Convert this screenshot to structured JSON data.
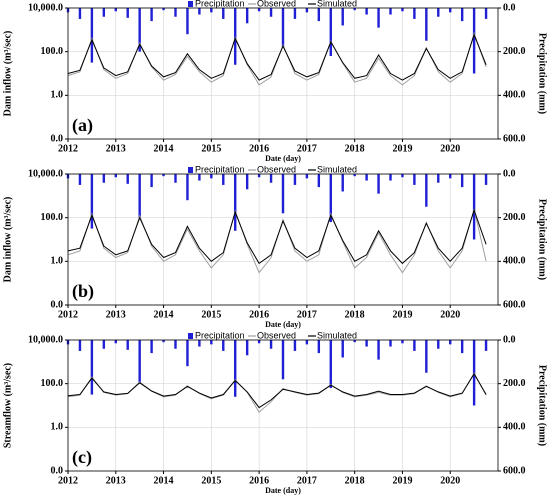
{
  "chart_data": [
    {
      "type": "line",
      "panel_label": "(a)",
      "xlabel": "Date (day)",
      "ylabel": "Dam inflow (m³/sec)",
      "y2label": "Precipitation (mm)",
      "legend": "top",
      "grid": true,
      "log_y": true,
      "x": [
        2012.0,
        2012.25,
        2012.5,
        2012.75,
        2013.0,
        2013.25,
        2013.5,
        2013.75,
        2014.0,
        2014.25,
        2014.5,
        2014.75,
        2015.0,
        2015.25,
        2015.5,
        2015.75,
        2016.0,
        2016.25,
        2016.5,
        2016.75,
        2017.0,
        2017.25,
        2017.5,
        2017.75,
        2018.0,
        2018.25,
        2018.5,
        2018.75,
        2019.0,
        2019.25,
        2019.5,
        2019.75,
        2020.0,
        2020.25,
        2020.5,
        2020.75
      ],
      "xlim": [
        2012,
        2021
      ],
      "xticks": [
        2012,
        2013,
        2014,
        2015,
        2016,
        2017,
        2018,
        2019,
        2020
      ],
      "ylim": [
        0.01,
        10000
      ],
      "yticks": [
        {
          "value": 0.01,
          "label": "0.0"
        },
        {
          "value": 1,
          "label": "1.0"
        },
        {
          "value": 100,
          "label": "100.0"
        },
        {
          "value": 10000,
          "label": "10,000.0"
        }
      ],
      "y2lim": [
        600,
        0
      ],
      "y2ticks": [
        {
          "value": 0,
          "label": "0.0"
        },
        {
          "value": 200,
          "label": "200.0"
        },
        {
          "value": 400,
          "label": "400.0"
        },
        {
          "value": 600,
          "label": "600.0"
        }
      ],
      "series": [
        {
          "name": "Precipitation",
          "type": "bar",
          "axis": "y2",
          "color": "#1f1fd6",
          "values": [
            20,
            50,
            250,
            40,
            15,
            45,
            200,
            60,
            10,
            40,
            120,
            30,
            20,
            50,
            260,
            70,
            15,
            40,
            180,
            50,
            20,
            60,
            220,
            80,
            10,
            30,
            90,
            30,
            15,
            50,
            150,
            40,
            20,
            60,
            300,
            50
          ]
        },
        {
          "name": "Observed",
          "color": "#a0a0a0",
          "values": [
            8,
            12,
            400,
            15,
            6,
            10,
            250,
            20,
            5,
            9,
            60,
            12,
            4,
            8,
            450,
            25,
            3,
            7,
            200,
            10,
            5,
            9,
            300,
            30,
            4,
            6,
            50,
            8,
            3,
            8,
            150,
            12,
            4,
            10,
            700,
            20
          ]
        },
        {
          "name": "Simulated",
          "color": "#000000",
          "values": [
            10,
            14,
            350,
            18,
            8,
            12,
            220,
            22,
            7,
            11,
            80,
            15,
            6,
            10,
            400,
            28,
            5,
            9,
            180,
            13,
            7,
            11,
            280,
            32,
            6,
            8,
            70,
            10,
            5,
            10,
            140,
            15,
            6,
            12,
            600,
            25
          ]
        }
      ]
    },
    {
      "type": "line",
      "panel_label": "(b)",
      "xlabel": "Date (day)",
      "ylabel": "Dam inflow (m³/sec)",
      "y2label": "Precipitation (mm)",
      "legend": "top",
      "grid": true,
      "log_y": true,
      "x": [
        2012.0,
        2012.25,
        2012.5,
        2012.75,
        2013.0,
        2013.25,
        2013.5,
        2013.75,
        2014.0,
        2014.25,
        2014.5,
        2014.75,
        2015.0,
        2015.25,
        2015.5,
        2015.75,
        2016.0,
        2016.25,
        2016.5,
        2016.75,
        2017.0,
        2017.25,
        2017.5,
        2017.75,
        2018.0,
        2018.25,
        2018.5,
        2018.75,
        2019.0,
        2019.25,
        2019.5,
        2019.75,
        2020.0,
        2020.25,
        2020.5,
        2020.75
      ],
      "xlim": [
        2012,
        2021
      ],
      "xticks": [
        2012,
        2013,
        2014,
        2015,
        2016,
        2017,
        2018,
        2019,
        2020
      ],
      "ylim": [
        0.01,
        10000
      ],
      "yticks": [
        {
          "value": 0.01,
          "label": "0.0"
        },
        {
          "value": 1,
          "label": "1.0"
        },
        {
          "value": 100,
          "label": "100.0"
        },
        {
          "value": 10000,
          "label": "10,000.0"
        }
      ],
      "y2lim": [
        600,
        0
      ],
      "y2ticks": [
        {
          "value": 0,
          "label": "0.0"
        },
        {
          "value": 200,
          "label": "200.0"
        },
        {
          "value": 400,
          "label": "400.0"
        },
        {
          "value": 600,
          "label": "600.0"
        }
      ],
      "series": [
        {
          "name": "Precipitation",
          "type": "bar",
          "axis": "y2",
          "color": "#1f1fd6",
          "values": [
            20,
            50,
            250,
            40,
            15,
            45,
            200,
            60,
            10,
            40,
            120,
            30,
            20,
            50,
            260,
            70,
            15,
            40,
            180,
            50,
            20,
            60,
            220,
            80,
            10,
            30,
            90,
            30,
            15,
            50,
            150,
            40,
            20,
            60,
            300,
            50
          ]
        },
        {
          "name": "Observed",
          "color": "#a0a0a0",
          "values": [
            2,
            3,
            150,
            4,
            1.5,
            2.5,
            120,
            5,
            1,
            2,
            30,
            3,
            0.5,
            2,
            200,
            6,
            0.3,
            1.5,
            80,
            3,
            1,
            2,
            150,
            8,
            0.5,
            1.5,
            20,
            2,
            0.3,
            2,
            60,
            3,
            0.5,
            3,
            250,
            1
          ]
        },
        {
          "name": "Simulated",
          "color": "#000000",
          "values": [
            3,
            4,
            130,
            5,
            2,
            3,
            100,
            6,
            1.5,
            2.5,
            40,
            4,
            1,
            2.5,
            180,
            7,
            0.8,
            2,
            70,
            4,
            1.5,
            3,
            130,
            9,
            1,
            2,
            25,
            3,
            0.8,
            2.5,
            55,
            4,
            1,
            4,
            220,
            6
          ]
        }
      ]
    },
    {
      "type": "line",
      "panel_label": "(c)",
      "xlabel": "Date (day)",
      "ylabel": "Streamflow (m³/sec)",
      "y2label": "Precipitation (mm)",
      "legend": "top",
      "grid": true,
      "log_y": true,
      "x": [
        2012.0,
        2012.25,
        2012.5,
        2012.75,
        2013.0,
        2013.25,
        2013.5,
        2013.75,
        2014.0,
        2014.25,
        2014.5,
        2014.75,
        2015.0,
        2015.25,
        2015.5,
        2015.75,
        2016.0,
        2016.25,
        2016.5,
        2016.75,
        2017.0,
        2017.25,
        2017.5,
        2017.75,
        2018.0,
        2018.25,
        2018.5,
        2018.75,
        2019.0,
        2019.25,
        2019.5,
        2019.75,
        2020.0,
        2020.25,
        2020.5,
        2020.75
      ],
      "xlim": [
        2012,
        2021
      ],
      "xticks": [
        2012,
        2013,
        2014,
        2015,
        2016,
        2017,
        2018,
        2019,
        2020
      ],
      "ylim": [
        0.01,
        10000
      ],
      "yticks": [
        {
          "value": 0.01,
          "label": "0.0"
        },
        {
          "value": 1,
          "label": "1.0"
        },
        {
          "value": 100,
          "label": "100.0"
        },
        {
          "value": 10000,
          "label": "10,000.0"
        }
      ],
      "y2lim": [
        600,
        0
      ],
      "y2ticks": [
        {
          "value": 0,
          "label": "0.0"
        },
        {
          "value": 200,
          "label": "200.0"
        },
        {
          "value": 400,
          "label": "400.0"
        },
        {
          "value": 600,
          "label": "600.0"
        }
      ],
      "series": [
        {
          "name": "Precipitation",
          "type": "bar",
          "axis": "y2",
          "color": "#1f1fd6",
          "values": [
            20,
            50,
            250,
            40,
            15,
            45,
            200,
            60,
            10,
            40,
            120,
            30,
            20,
            50,
            260,
            70,
            15,
            40,
            180,
            50,
            20,
            60,
            220,
            80,
            10,
            30,
            90,
            30,
            15,
            50,
            150,
            40,
            20,
            60,
            300,
            50
          ]
        },
        {
          "name": "Observed",
          "color": "#a0a0a0",
          "values": [
            25,
            30,
            200,
            40,
            30,
            35,
            120,
            45,
            25,
            30,
            80,
            35,
            20,
            30,
            150,
            40,
            5,
            15,
            60,
            40,
            30,
            35,
            90,
            40,
            25,
            30,
            40,
            30,
            30,
            35,
            80,
            40,
            25,
            35,
            300,
            30
          ]
        },
        {
          "name": "Simulated",
          "color": "#000000",
          "values": [
            28,
            32,
            180,
            42,
            32,
            36,
            110,
            46,
            27,
            32,
            75,
            37,
            22,
            32,
            140,
            42,
            8,
            18,
            55,
            42,
            32,
            37,
            85,
            42,
            27,
            32,
            45,
            32,
            32,
            37,
            75,
            42,
            27,
            37,
            280,
            32
          ]
        }
      ]
    }
  ]
}
